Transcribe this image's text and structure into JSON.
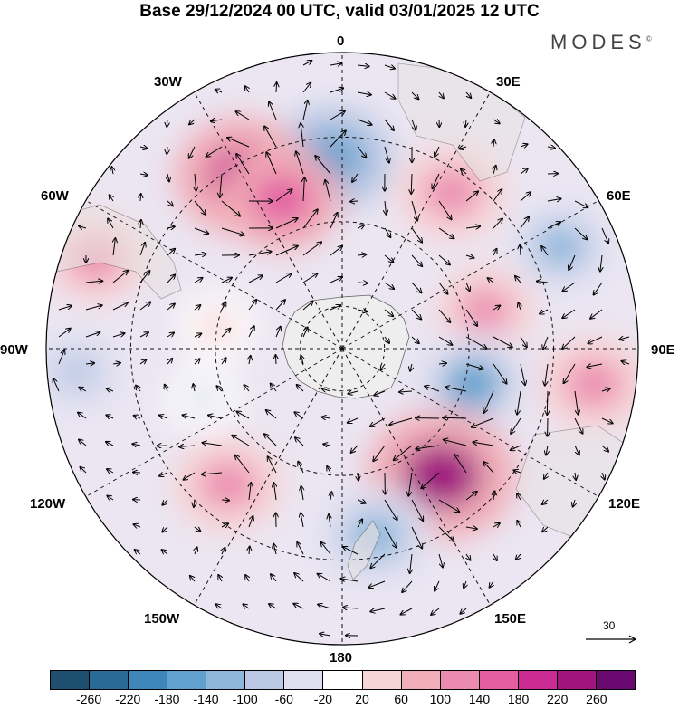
{
  "title": "Base 29/12/2024 00 UTC, valid 03/01/2025 12 UTC",
  "brand": "MODES",
  "brand_mark": "©",
  "longitude_labels": {
    "lon_0": "0",
    "lon_30e": "30E",
    "lon_60e": "60E",
    "lon_90e": "90E",
    "lon_120e": "120E",
    "lon_150e": "150E",
    "lon_180": "180",
    "lon_150w": "150W",
    "lon_120w": "120W",
    "lon_90w": "90W",
    "lon_60w": "60W",
    "lon_30w": "30W"
  },
  "reference_vector_label": "30",
  "colorbar": {
    "colors": [
      "#1e4f6e",
      "#2a6a97",
      "#3f86bc",
      "#62a1cf",
      "#8fb7dc",
      "#bcc9e5",
      "#dfdff0",
      "#ffffff",
      "#f7d4d6",
      "#f2aeb8",
      "#ec8bb0",
      "#e35ea3",
      "#c92b92",
      "#a01480",
      "#6a0a70"
    ],
    "ticks": [
      "-260",
      "-220",
      "-180",
      "-140",
      "-100",
      "-60",
      "-20",
      "20",
      "60",
      "100",
      "140",
      "180",
      "220",
      "260"
    ]
  },
  "anomaly_centers_lon_lat": [
    {
      "lon": -3,
      "lat": -45,
      "value": -160
    },
    {
      "lon": 35,
      "lat": -45,
      "value": 130
    },
    {
      "lon": 65,
      "lat": -33,
      "value": -110
    },
    {
      "lon": 75,
      "lat": -55,
      "value": 100
    },
    {
      "lon": 105,
      "lat": -58,
      "value": -150
    },
    {
      "lon": 98,
      "lat": -30,
      "value": 130
    },
    {
      "lon": 142,
      "lat": -52,
      "value": 240
    },
    {
      "lon": 170,
      "lat": -45,
      "value": -140
    },
    {
      "lon": -140,
      "lat": -48,
      "value": 130
    },
    {
      "lon": -30,
      "lat": -43,
      "value": 200
    },
    {
      "lon": -22,
      "lat": -52,
      "value": 150
    },
    {
      "lon": -70,
      "lat": -28,
      "value": 110
    },
    {
      "lon": -95,
      "lat": -27,
      "value": -70
    },
    {
      "lon": -80,
      "lat": -60,
      "value": 40
    },
    {
      "lon": -110,
      "lat": -55,
      "value": -30
    }
  ]
}
